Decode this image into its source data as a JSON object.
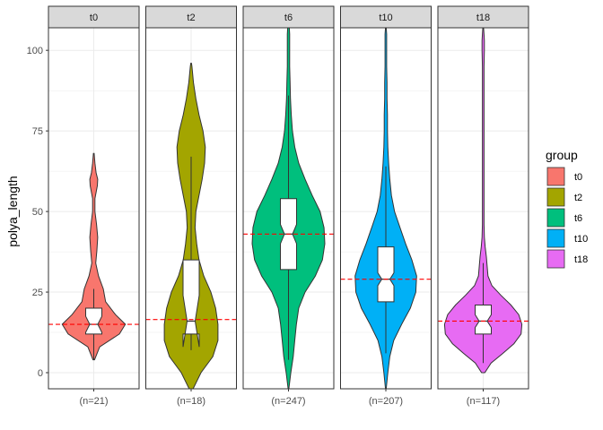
{
  "chart_data": {
    "type": "violin",
    "ylabel": "polya_length",
    "ylim": [
      -5,
      107
    ],
    "yticks": [
      0,
      25,
      50,
      75,
      100
    ],
    "grid": true,
    "legend": {
      "title": "group",
      "position": "right"
    },
    "panels": [
      {
        "name": "t0",
        "count_label": "(n=21)",
        "color": "#F8766D",
        "median": 15,
        "q1": 12,
        "q3": 20,
        "notch": [
          12.5,
          17.5
        ],
        "whisker": [
          4,
          26
        ],
        "mean_line": 15,
        "density": [
          [
            4,
            0.02
          ],
          [
            8,
            0.15
          ],
          [
            12,
            0.65
          ],
          [
            15,
            0.8
          ],
          [
            18,
            0.55
          ],
          [
            22,
            0.3
          ],
          [
            26,
            0.24
          ],
          [
            30,
            0.12
          ],
          [
            34,
            0.05
          ],
          [
            38,
            0.08
          ],
          [
            42,
            0.1
          ],
          [
            46,
            0.07
          ],
          [
            50,
            0.03
          ],
          [
            54,
            0.03
          ],
          [
            58,
            0.09
          ],
          [
            60,
            0.1
          ],
          [
            62,
            0.06
          ],
          [
            65,
            0.03
          ],
          [
            68,
            0.01
          ]
        ]
      },
      {
        "name": "t2",
        "count_label": "(n=18)",
        "color": "#A3A500",
        "median": 16,
        "q1": 12,
        "q3": 35,
        "notch": [
          8,
          24
        ],
        "whisker": [
          7,
          67
        ],
        "mean_line": 16.5,
        "density": [
          [
            -5,
            0.05
          ],
          [
            0,
            0.25
          ],
          [
            5,
            0.55
          ],
          [
            10,
            0.68
          ],
          [
            15,
            0.68
          ],
          [
            20,
            0.62
          ],
          [
            25,
            0.5
          ],
          [
            30,
            0.32
          ],
          [
            35,
            0.2
          ],
          [
            40,
            0.14
          ],
          [
            45,
            0.1
          ],
          [
            50,
            0.12
          ],
          [
            55,
            0.2
          ],
          [
            60,
            0.28
          ],
          [
            65,
            0.34
          ],
          [
            70,
            0.36
          ],
          [
            75,
            0.3
          ],
          [
            80,
            0.2
          ],
          [
            85,
            0.12
          ],
          [
            90,
            0.06
          ],
          [
            95,
            0.02
          ],
          [
            96,
            0.01
          ]
        ]
      },
      {
        "name": "t6",
        "count_label": "(n=247)",
        "color": "#00BF7D",
        "median": 43,
        "q1": 32,
        "q3": 54,
        "notch": [
          40,
          46
        ],
        "whisker": [
          4,
          86
        ],
        "mean_line": 43,
        "density": [
          [
            -5,
            0.01
          ],
          [
            0,
            0.06
          ],
          [
            5,
            0.12
          ],
          [
            10,
            0.16
          ],
          [
            15,
            0.2
          ],
          [
            20,
            0.26
          ],
          [
            25,
            0.42
          ],
          [
            30,
            0.68
          ],
          [
            35,
            0.86
          ],
          [
            40,
            0.92
          ],
          [
            45,
            0.9
          ],
          [
            50,
            0.8
          ],
          [
            55,
            0.6
          ],
          [
            60,
            0.42
          ],
          [
            65,
            0.26
          ],
          [
            70,
            0.16
          ],
          [
            75,
            0.1
          ],
          [
            80,
            0.07
          ],
          [
            85,
            0.05
          ],
          [
            90,
            0.04
          ],
          [
            95,
            0.03
          ],
          [
            100,
            0.03
          ],
          [
            105,
            0.03
          ],
          [
            107,
            0.02
          ]
        ]
      },
      {
        "name": "t10",
        "count_label": "(n=207)",
        "color": "#00B0F6",
        "median": 29,
        "q1": 22,
        "q3": 39,
        "notch": [
          27,
          31
        ],
        "whisker": [
          6,
          64
        ],
        "mean_line": 29,
        "density": [
          [
            -5,
            0.01
          ],
          [
            0,
            0.05
          ],
          [
            5,
            0.1
          ],
          [
            10,
            0.2
          ],
          [
            15,
            0.4
          ],
          [
            20,
            0.62
          ],
          [
            25,
            0.76
          ],
          [
            30,
            0.78
          ],
          [
            35,
            0.66
          ],
          [
            40,
            0.5
          ],
          [
            45,
            0.36
          ],
          [
            50,
            0.22
          ],
          [
            55,
            0.14
          ],
          [
            60,
            0.1
          ],
          [
            65,
            0.07
          ],
          [
            70,
            0.05
          ],
          [
            75,
            0.04
          ],
          [
            80,
            0.04
          ],
          [
            85,
            0.03
          ],
          [
            90,
            0.03
          ],
          [
            95,
            0.02
          ],
          [
            100,
            0.02
          ],
          [
            105,
            0.02
          ],
          [
            107,
            0.01
          ]
        ]
      },
      {
        "name": "t18",
        "count_label": "(n=117)",
        "color": "#E76BF3",
        "median": 16,
        "q1": 12,
        "q3": 21,
        "notch": [
          14,
          18
        ],
        "whisker": [
          3,
          34
        ],
        "mean_line": 16,
        "density": [
          [
            0,
            0.04
          ],
          [
            3,
            0.2
          ],
          [
            6,
            0.5
          ],
          [
            9,
            0.78
          ],
          [
            12,
            0.96
          ],
          [
            15,
            0.98
          ],
          [
            18,
            0.9
          ],
          [
            21,
            0.7
          ],
          [
            24,
            0.45
          ],
          [
            27,
            0.22
          ],
          [
            30,
            0.12
          ],
          [
            33,
            0.1
          ],
          [
            36,
            0.08
          ],
          [
            39,
            0.05
          ],
          [
            42,
            0.03
          ],
          [
            46,
            0.02
          ],
          [
            55,
            0.02
          ],
          [
            65,
            0.02
          ],
          [
            75,
            0.02
          ],
          [
            85,
            0.02
          ],
          [
            95,
            0.02
          ],
          [
            100,
            0.03
          ],
          [
            103,
            0.03
          ],
          [
            105,
            0.02
          ],
          [
            107,
            0.01
          ]
        ]
      }
    ]
  }
}
